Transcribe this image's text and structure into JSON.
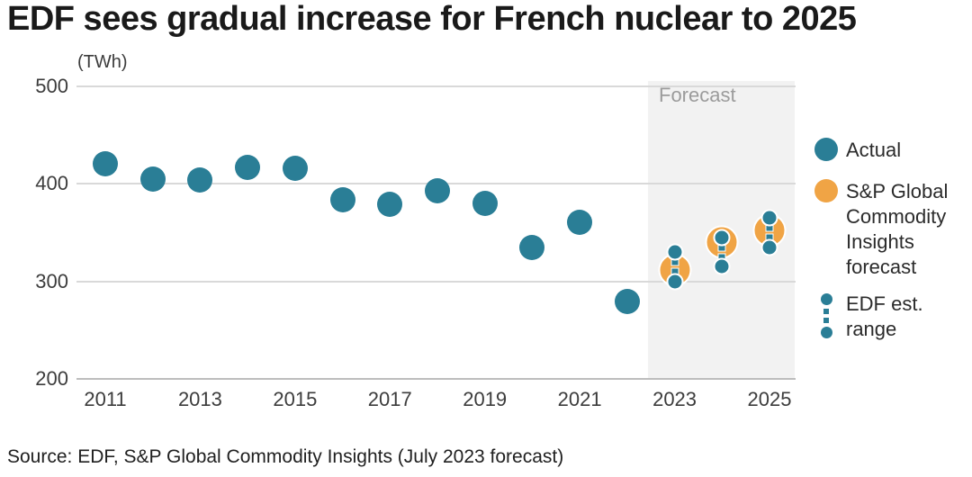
{
  "header": {
    "title": "EDF sees gradual increase for French nuclear to 2025"
  },
  "chart": {
    "unit_label": "(TWh)",
    "forecast_label": "Forecast",
    "legend": {
      "actual": {
        "label": "Actual"
      },
      "sp": {
        "lines": [
          "S&P Global",
          "Commodity",
          "Insights",
          "forecast"
        ]
      },
      "edf": {
        "lines": [
          "EDF est.",
          "range"
        ]
      }
    }
  },
  "footer": {
    "source": "Source: EDF, S&P Global Commodity Insights (July 2023 forecast)"
  },
  "colors": {
    "actual": "#2a7e96",
    "forecast": "#f0a445",
    "band": "#f2f2f2",
    "band_label": "#9b9b9b",
    "gridline": "#d9d9d9",
    "baseline": "#bdbdbd",
    "axis_text": "#3c3c3c",
    "title_text": "#1a1a1a"
  },
  "chart_data": {
    "type": "scatter",
    "title": "EDF sees gradual increase for French nuclear to 2025",
    "xlabel": "",
    "ylabel": "(TWh)",
    "ylim": [
      200,
      500
    ],
    "yticks": [
      500,
      400,
      300,
      200
    ],
    "xticks": [
      2011,
      2013,
      2015,
      2017,
      2019,
      2021,
      2023,
      2025
    ],
    "grid": "horizontal",
    "legend_position": "right",
    "forecast_region": {
      "years": [
        2023,
        2024,
        2025
      ],
      "label": "Forecast"
    },
    "series": [
      {
        "name": "Actual",
        "type": "scatter",
        "x": [
          2011,
          2012,
          2013,
          2014,
          2015,
          2016,
          2017,
          2018,
          2019,
          2020,
          2021,
          2022
        ],
        "y": [
          421,
          405,
          404,
          417,
          416,
          384,
          379,
          393,
          380,
          335,
          361,
          279
        ]
      },
      {
        "name": "S&P Global Commodity Insights forecast",
        "type": "scatter",
        "x": [
          2023,
          2024,
          2025
        ],
        "y": [
          312,
          340,
          352
        ]
      },
      {
        "name": "EDF est. range",
        "type": "range",
        "x": [
          2023,
          2024,
          2025
        ],
        "low": [
          300,
          315,
          335
        ],
        "high": [
          330,
          345,
          365
        ]
      }
    ]
  }
}
